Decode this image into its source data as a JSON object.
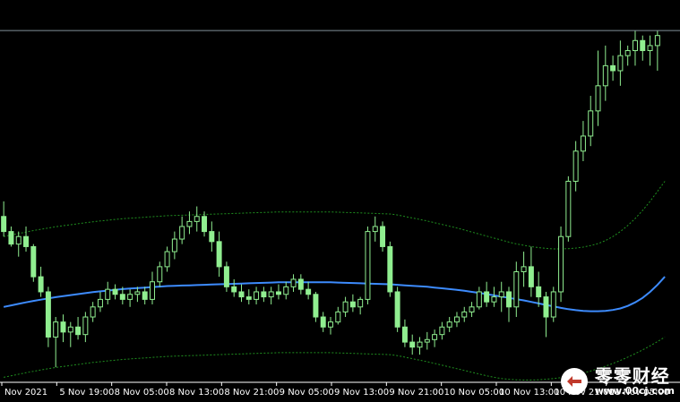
{
  "chart_data": {
    "type": "candlestick",
    "title": "",
    "xlabel": "",
    "ylabel": "",
    "grid": false,
    "x_tick_labels": [
      "Nov 2021",
      "5 Nov 19:00",
      "8 Nov 05:00",
      "8 Nov 13:00",
      "8 Nov 21:00",
      "9 Nov 05:00",
      "9 Nov 13:00",
      "9 Nov 21:00",
      "10 Nov 05:00",
      "10 Nov 13:00",
      "10 Nov 21:00",
      "11 Nov 05:00"
    ],
    "candles": [
      [
        66,
        72,
        58,
        60
      ],
      [
        60,
        62,
        54,
        55
      ],
      [
        55,
        60,
        50,
        58
      ],
      [
        58,
        62,
        52,
        54
      ],
      [
        54,
        55,
        40,
        42
      ],
      [
        42,
        46,
        34,
        36
      ],
      [
        36,
        38,
        14,
        18
      ],
      [
        18,
        26,
        6,
        24
      ],
      [
        24,
        27,
        16,
        20
      ],
      [
        20,
        24,
        14,
        22
      ],
      [
        22,
        26,
        17,
        19
      ],
      [
        19,
        28,
        16,
        26
      ],
      [
        26,
        32,
        24,
        30
      ],
      [
        30,
        36,
        28,
        33
      ],
      [
        33,
        40,
        31,
        37
      ],
      [
        37,
        39,
        33,
        35
      ],
      [
        35,
        38,
        31,
        33
      ],
      [
        33,
        37,
        30,
        35
      ],
      [
        35,
        38,
        32,
        36
      ],
      [
        36,
        38,
        31,
        33
      ],
      [
        33,
        44,
        31,
        40
      ],
      [
        40,
        48,
        38,
        46
      ],
      [
        46,
        54,
        44,
        52
      ],
      [
        52,
        60,
        49,
        57
      ],
      [
        57,
        66,
        55,
        62
      ],
      [
        62,
        68,
        59,
        64
      ],
      [
        64,
        70,
        60,
        66
      ],
      [
        66,
        68,
        58,
        60
      ],
      [
        60,
        64,
        52,
        56
      ],
      [
        56,
        60,
        42,
        46
      ],
      [
        46,
        48,
        36,
        38
      ],
      [
        38,
        41,
        34,
        36
      ],
      [
        36,
        39,
        32,
        34
      ],
      [
        34,
        37,
        31,
        33
      ],
      [
        33,
        38,
        31,
        36
      ],
      [
        36,
        38,
        32,
        34
      ],
      [
        34,
        38,
        31,
        36
      ],
      [
        36,
        39,
        33,
        35
      ],
      [
        35,
        40,
        33,
        38
      ],
      [
        38,
        43,
        36,
        41
      ],
      [
        41,
        43,
        35,
        37
      ],
      [
        37,
        40,
        33,
        35
      ],
      [
        35,
        36,
        24,
        26
      ],
      [
        26,
        28,
        20,
        22
      ],
      [
        22,
        26,
        19,
        24
      ],
      [
        24,
        30,
        23,
        28
      ],
      [
        28,
        34,
        26,
        32
      ],
      [
        32,
        35,
        28,
        30
      ],
      [
        30,
        34,
        27,
        33
      ],
      [
        33,
        62,
        31,
        60
      ],
      [
        60,
        66,
        56,
        62
      ],
      [
        62,
        64,
        52,
        54
      ],
      [
        54,
        56,
        34,
        36
      ],
      [
        36,
        38,
        20,
        22
      ],
      [
        22,
        25,
        14,
        16
      ],
      [
        16,
        19,
        11,
        14
      ],
      [
        14,
        18,
        11,
        16
      ],
      [
        16,
        20,
        13,
        17
      ],
      [
        17,
        21,
        14,
        19
      ],
      [
        19,
        24,
        17,
        22
      ],
      [
        22,
        26,
        20,
        24
      ],
      [
        24,
        28,
        22,
        26
      ],
      [
        26,
        30,
        24,
        28
      ],
      [
        28,
        32,
        26,
        30
      ],
      [
        30,
        38,
        29,
        36
      ],
      [
        36,
        40,
        30,
        32
      ],
      [
        32,
        38,
        30,
        34
      ],
      [
        34,
        40,
        28,
        36
      ],
      [
        36,
        38,
        24,
        30
      ],
      [
        30,
        48,
        26,
        44
      ],
      [
        44,
        52,
        38,
        46
      ],
      [
        46,
        54,
        34,
        38
      ],
      [
        38,
        44,
        30,
        34
      ],
      [
        34,
        36,
        18,
        26
      ],
      [
        26,
        38,
        24,
        36
      ],
      [
        36,
        62,
        32,
        58
      ],
      [
        58,
        82,
        56,
        80
      ],
      [
        80,
        96,
        76,
        92
      ],
      [
        92,
        104,
        88,
        98
      ],
      [
        98,
        114,
        94,
        108
      ],
      [
        108,
        132,
        102,
        118
      ],
      [
        118,
        134,
        112,
        126
      ],
      [
        126,
        130,
        120,
        124
      ],
      [
        124,
        136,
        118,
        130
      ],
      [
        130,
        134,
        126,
        132
      ],
      [
        132,
        140,
        126,
        136
      ],
      [
        136,
        138,
        128,
        132
      ],
      [
        132,
        138,
        126,
        134
      ],
      [
        134,
        140,
        124,
        138
      ]
    ],
    "moving_average": [
      30.0,
      30.6,
      31.2,
      31.8,
      32.4,
      32.9,
      33.4,
      33.9,
      34.3,
      34.7,
      35.1,
      35.5,
      35.9,
      36.2,
      36.5,
      36.8,
      37.1,
      37.3,
      37.5,
      37.7,
      37.9,
      38.1,
      38.3,
      38.4,
      38.5,
      38.6,
      38.7,
      38.8,
      38.9,
      39.0,
      39.1,
      39.2,
      39.3,
      39.4,
      39.5,
      39.6,
      39.7,
      39.8,
      39.8,
      39.8,
      39.8,
      39.8,
      39.8,
      39.8,
      39.8,
      39.7,
      39.6,
      39.5,
      39.4,
      39.3,
      39.2,
      39.1,
      39.0,
      38.8,
      38.6,
      38.4,
      38.2,
      38.0,
      37.7,
      37.4,
      37.1,
      36.8,
      36.4,
      36.0,
      35.6,
      35.1,
      34.6,
      34.1,
      33.6,
      33.1,
      32.6,
      32.0,
      31.4,
      30.8,
      30.2,
      29.6,
      29.1,
      28.7,
      28.4,
      28.3,
      28.3,
      28.4,
      28.8,
      29.4,
      30.4,
      31.8,
      33.6,
      36.0,
      38.8,
      42.0
    ],
    "band_upper": [
      58.0,
      58.6,
      59.2,
      59.8,
      60.4,
      60.9,
      61.4,
      61.9,
      62.3,
      62.7,
      63.1,
      63.5,
      63.9,
      64.2,
      64.5,
      64.8,
      65.1,
      65.3,
      65.5,
      65.7,
      65.9,
      66.1,
      66.3,
      66.4,
      66.5,
      66.6,
      66.7,
      66.8,
      66.9,
      67.0,
      67.1,
      67.2,
      67.3,
      67.4,
      67.5,
      67.6,
      67.7,
      67.8,
      67.8,
      67.8,
      67.8,
      67.8,
      67.8,
      67.8,
      67.8,
      67.7,
      67.6,
      67.5,
      67.4,
      67.3,
      67.2,
      67.1,
      67.0,
      66.6,
      66.0,
      65.4,
      64.8,
      64.2,
      63.5,
      62.8,
      62.1,
      61.4,
      60.6,
      59.8,
      59.0,
      58.2,
      57.4,
      56.6,
      55.8,
      55.1,
      54.5,
      54.0,
      53.6,
      53.3,
      53.1,
      53.1,
      53.2,
      53.4,
      53.8,
      54.4,
      55.2,
      56.4,
      58.0,
      60.0,
      62.4,
      65.2,
      68.4,
      72.0,
      76.0,
      80.0
    ],
    "band_lower": [
      2.0,
      2.6,
      3.2,
      3.8,
      4.4,
      4.9,
      5.4,
      5.9,
      6.3,
      6.7,
      7.1,
      7.5,
      7.9,
      8.2,
      8.5,
      8.8,
      9.1,
      9.3,
      9.5,
      9.7,
      9.9,
      10.1,
      10.3,
      10.4,
      10.5,
      10.6,
      10.7,
      10.8,
      10.9,
      11.0,
      11.1,
      11.2,
      11.3,
      11.4,
      11.5,
      11.6,
      11.7,
      11.8,
      11.8,
      11.8,
      11.8,
      11.8,
      11.8,
      11.8,
      11.8,
      11.7,
      11.6,
      11.5,
      11.4,
      11.3,
      11.2,
      11.1,
      11.0,
      10.6,
      10.0,
      9.4,
      8.8,
      8.2,
      7.5,
      6.8,
      6.1,
      5.4,
      4.7,
      4.0,
      3.3,
      2.6,
      2.0,
      1.5,
      1.2,
      1.0,
      0.9,
      0.9,
      1.0,
      1.2,
      1.5,
      1.9,
      2.4,
      3.0,
      3.7,
      4.5,
      5.4,
      6.4,
      7.5,
      8.7,
      10.0,
      11.4,
      12.9,
      14.5,
      16.2,
      18.0
    ],
    "current_price": 140,
    "ylim": [
      0,
      150
    ],
    "colors": {
      "background": "#000000",
      "candle": "#90ee90",
      "moving_average": "#3d8bfd",
      "band": "#1f8f1f",
      "price_line": "#7f8f99",
      "tick_text": "#ffffff",
      "axis": "#ffffff"
    }
  },
  "watermark": {
    "brand": "零零财经",
    "url": "www.00cj.com"
  }
}
